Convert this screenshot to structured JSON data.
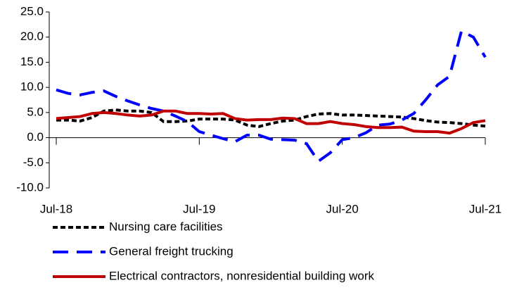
{
  "chart_data": {
    "type": "line",
    "categories": [
      "Jul-18",
      null,
      null,
      null,
      null,
      null,
      null,
      null,
      null,
      null,
      null,
      null,
      "Jul-19",
      null,
      null,
      null,
      null,
      null,
      null,
      null,
      null,
      null,
      null,
      null,
      "Jul-20",
      null,
      null,
      null,
      null,
      null,
      null,
      null,
      null,
      null,
      null,
      null,
      "Jul-21"
    ],
    "series": [
      {
        "name": "Nursing care facilities",
        "color": "#000000",
        "dash": "dotted",
        "values": [
          3.5,
          3.5,
          3.3,
          4,
          5.3,
          5.5,
          5.3,
          5.3,
          5,
          3.2,
          3.2,
          3.3,
          3.7,
          3.7,
          3.7,
          3.5,
          2.5,
          2.2,
          2.8,
          3.3,
          3.5,
          4.2,
          4.7,
          4.8,
          4.5,
          4.5,
          4.4,
          4.3,
          4.2,
          4.1,
          3.8,
          3.4,
          3.1,
          3,
          2.8,
          2.5,
          2.3
        ]
      },
      {
        "name": "General freight trucking",
        "color": "#0000ff",
        "dash": "dashed",
        "values": [
          9.5,
          8.8,
          8.5,
          9,
          9.3,
          8.2,
          7.3,
          6.5,
          5.8,
          5.3,
          4.3,
          3.2,
          1.2,
          0.5,
          -0.2,
          -0.8,
          0.5,
          0.5,
          -0.3,
          -0.4,
          -0.5,
          -1.2,
          -4.7,
          -3,
          -0.4,
          0,
          1,
          2.5,
          2.7,
          3.5,
          4.8,
          7.5,
          10.5,
          12.2,
          21.2,
          20,
          16
        ]
      },
      {
        "name": "Electrical contractors, nonresidential building work",
        "color": "#c00000",
        "dash": "solid",
        "values": [
          3.8,
          4,
          4.2,
          4.8,
          5,
          4.8,
          4.5,
          4.3,
          4.5,
          5.3,
          5.3,
          4.8,
          4.8,
          4.7,
          4.8,
          3.8,
          3.5,
          3.6,
          3.6,
          3.9,
          3.8,
          2.8,
          2.8,
          3.2,
          2.8,
          2.6,
          2.2,
          2,
          2,
          2.1,
          1.3,
          1.2,
          1.2,
          0.9,
          1.8,
          3,
          3.4
        ]
      }
    ],
    "ylim": [
      -10,
      25
    ],
    "yticks": [
      {
        "value": -10,
        "label": "-10.0"
      },
      {
        "value": -5,
        "label": "-5.0"
      },
      {
        "value": 0,
        "label": "0.0"
      },
      {
        "value": 5,
        "label": "5.0"
      },
      {
        "value": 10,
        "label": "10.0"
      },
      {
        "value": 15,
        "label": "15.0"
      },
      {
        "value": 20,
        "label": "20.0"
      },
      {
        "value": 25,
        "label": "25.0"
      }
    ],
    "grid": false,
    "legend": "bottom"
  }
}
